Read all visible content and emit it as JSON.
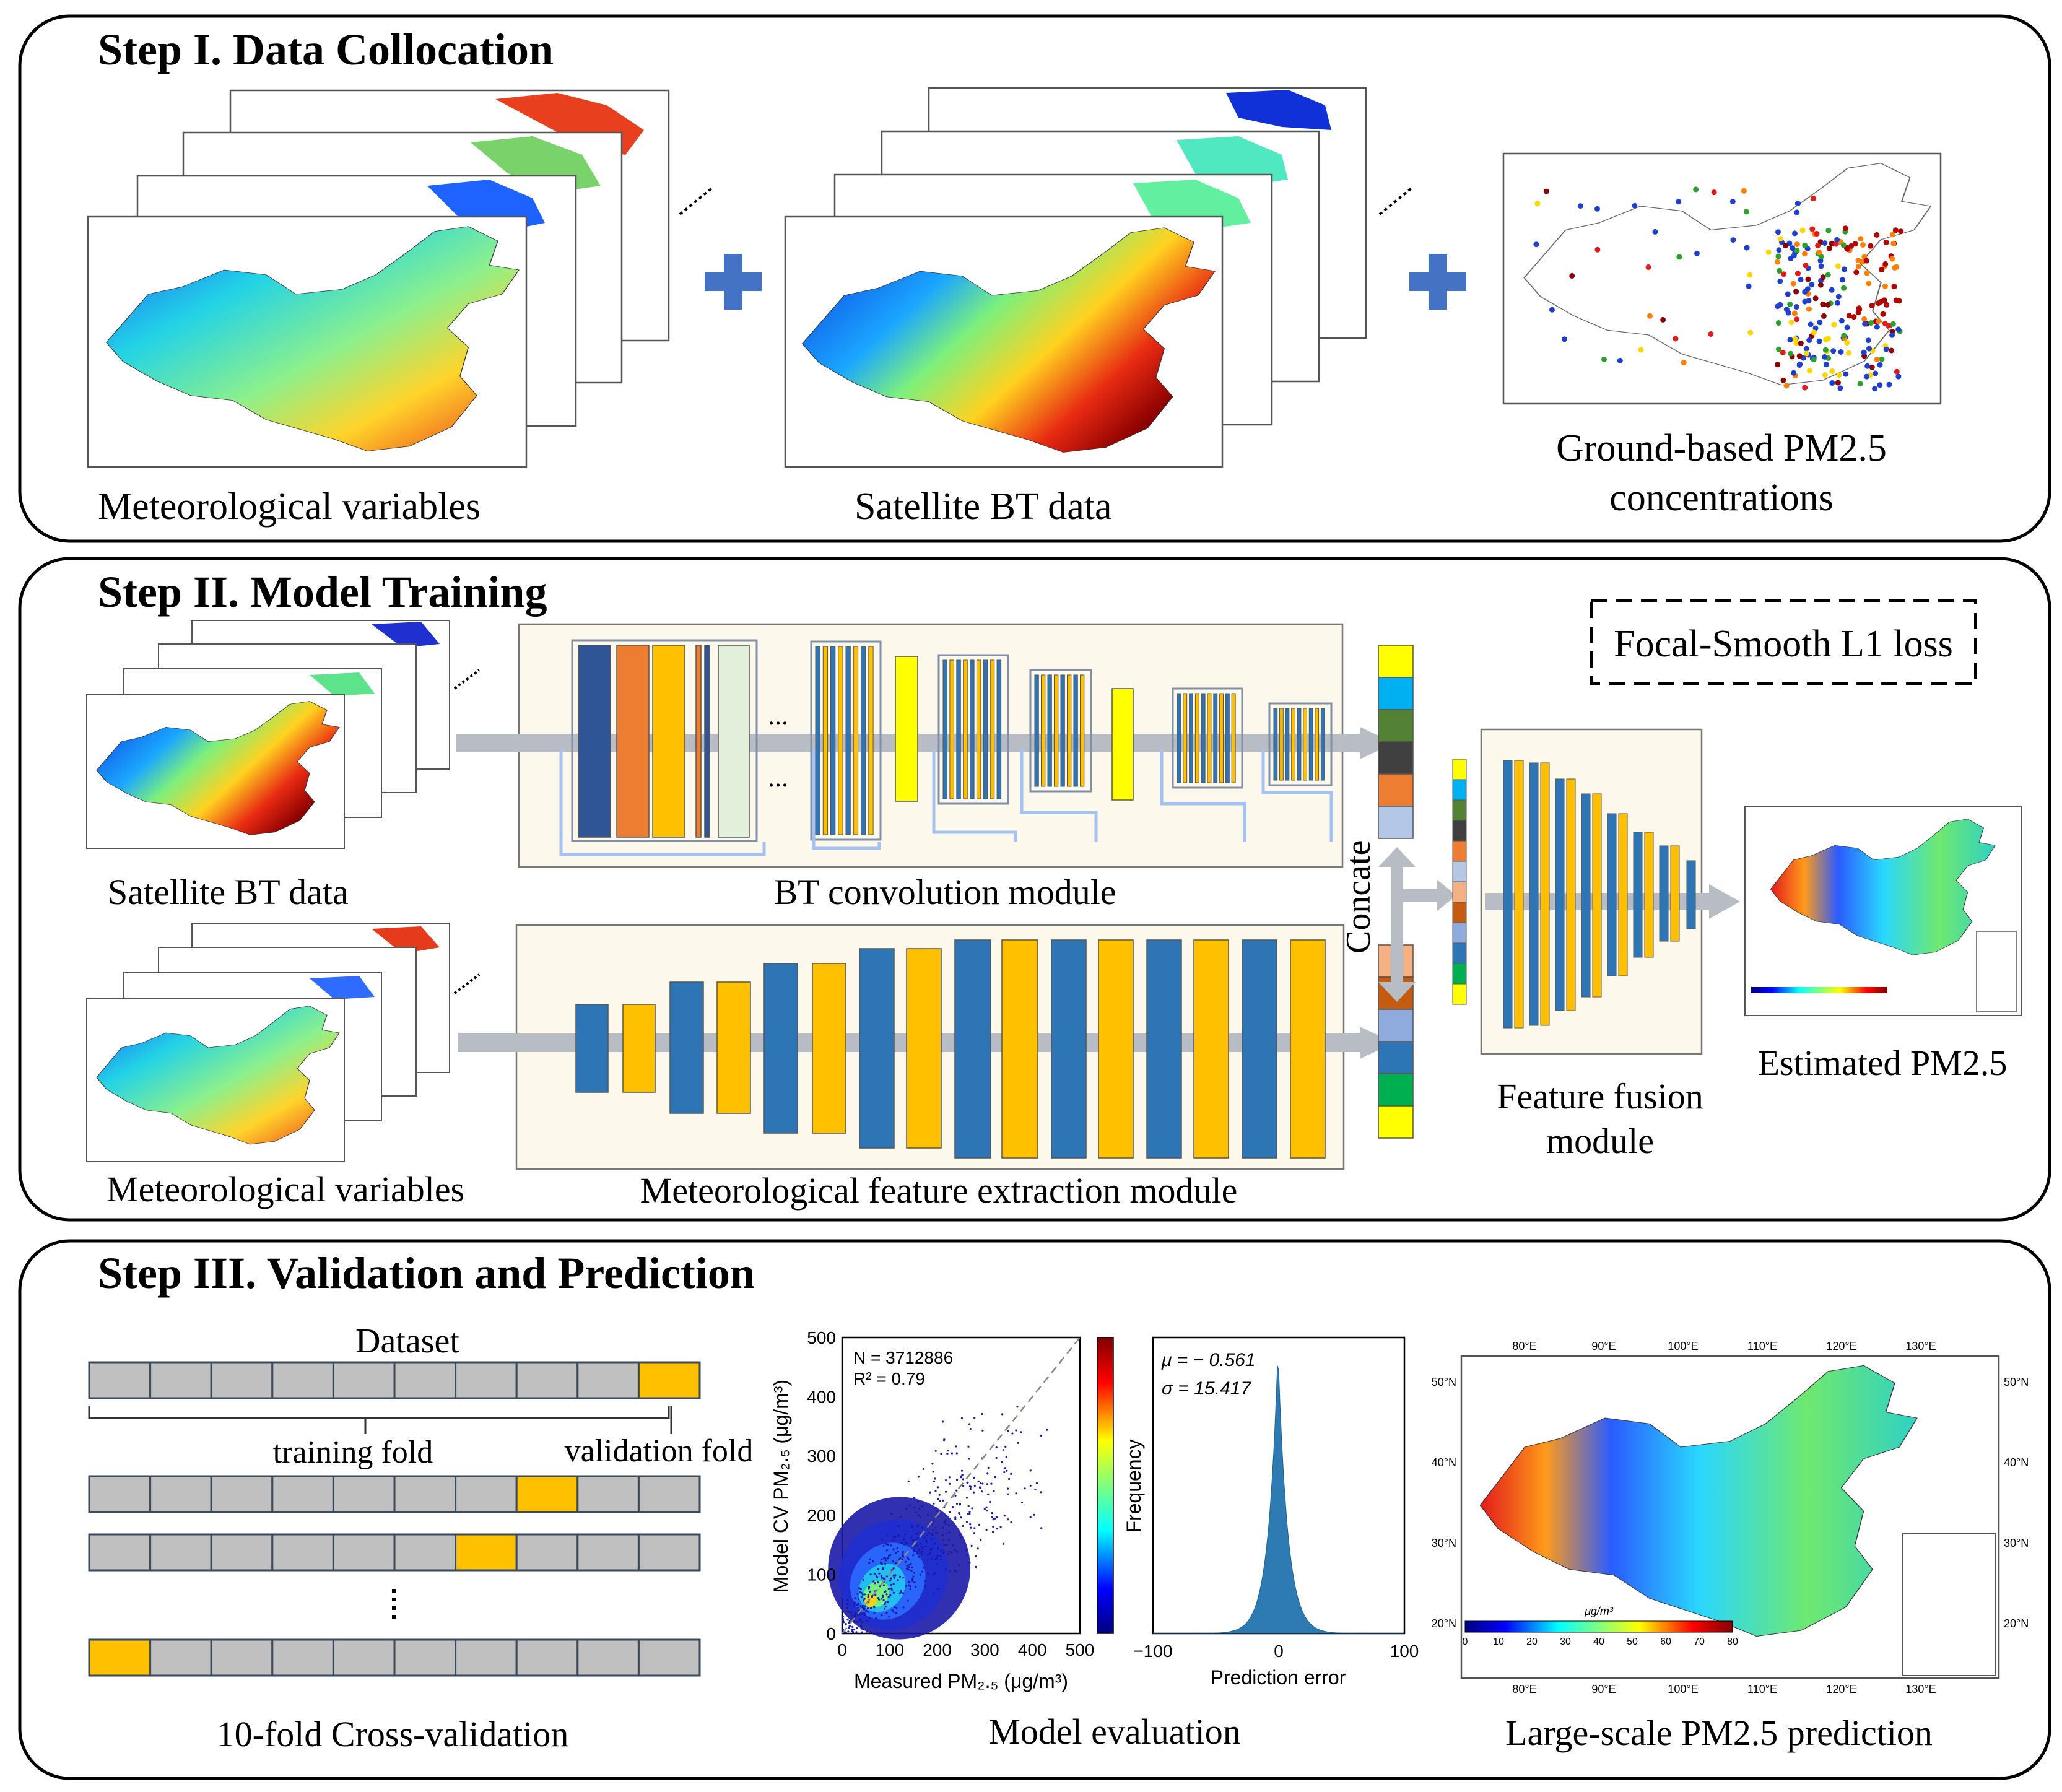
{
  "step1": {
    "title": "Step I. Data Collocation",
    "label_met": "Meteorological  variables",
    "label_bt": "Satellite  BT data",
    "label_ground_line1": "Ground-based  PM2.5",
    "label_ground_line2": "concentrations"
  },
  "step2": {
    "title": "Step II. Model Training",
    "loss_label": "Focal-Smooth L1  loss",
    "label_bt": "Satellite  BT data",
    "label_met": "Meteorological  variables",
    "bt_module_label": "BT convolution module",
    "met_module_label": "Meteorological  feature  extraction  module",
    "concat_label": "Concate",
    "fusion_label_line1": "Feature fusion",
    "fusion_label_line2": "module",
    "estimated_label": "Estimated PM2.5",
    "ellipsis": "..."
  },
  "step3": {
    "title": "Step III. Validation and Prediction",
    "dataset_label": "Dataset",
    "training_fold_label": "training  fold",
    "validation_fold_label": "validation  fold",
    "cv_label": "10-fold Cross-validation",
    "model_eval_label": "Model evaluation",
    "prediction_label": "Large-scale PM2.5 prediction",
    "cv_folds": [
      9,
      7,
      6,
      0
    ],
    "n_segments": 10
  },
  "scatter": {
    "n_text": "N = 3712886",
    "r2_text": "R² = 0.79",
    "xlabel": "Measured PM₂.₅ (μg/m³)",
    "ylabel": "Model CV PM₂.₅ (μg/m³)",
    "colorbar_label": "Frequency",
    "ticks": [
      "0",
      "100",
      "200",
      "300",
      "400",
      "500"
    ],
    "xlim": [
      0,
      500
    ],
    "ylim": [
      0,
      500
    ]
  },
  "histogram": {
    "mu_text": "μ = − 0.561",
    "sigma_text": "σ = 15.417",
    "xlabel": "Prediction error",
    "ticks": [
      "−100",
      "0",
      "100"
    ],
    "mu": -0.561,
    "sigma": 15.417
  },
  "pred_map": {
    "lon_ticks": [
      "80°E",
      "90°E",
      "100°E",
      "110°E",
      "120°E",
      "130°E"
    ],
    "lat_ticks": [
      "50°N",
      "40°N",
      "30°N",
      "20°N"
    ],
    "cb_unit": "μg/m³",
    "cb_ticks": [
      "0",
      "10",
      "20",
      "30",
      "40",
      "50",
      "60",
      "70",
      "80"
    ]
  },
  "colors": {
    "dark_blue": "#2f5597",
    "mid_blue": "#2e75b6",
    "orange": "#ed7d31",
    "gold": "#ffc000",
    "yellow": "#ffff00",
    "gray": "#c0c0c0",
    "module_bg": "#fdf8ec",
    "light_blue": "#a4c2f4",
    "pale_green": "#e2efda",
    "plus_blue": "#4472c4"
  },
  "concat_stack_top": [
    "#ffff00",
    "#00b0f0",
    "#548235",
    "#404040",
    "#ed7d31",
    "#b4c7e7"
  ],
  "concat_stack_bottom": [
    "#f4b183",
    "#c55a11",
    "#8faadc",
    "#2e75b6",
    "#00b050",
    "#ffff00"
  ],
  "thin_stack": [
    "#ffff00",
    "#00b0f0",
    "#548235",
    "#404040",
    "#ed7d31",
    "#b4c7e7",
    "#f4b183",
    "#c55a11",
    "#8faadc",
    "#2e75b6",
    "#00b050",
    "#ffff00"
  ]
}
